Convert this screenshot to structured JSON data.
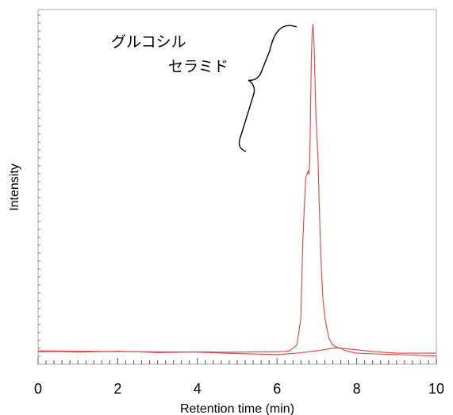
{
  "chart_data": {
    "type": "line",
    "xlabel": "Retention time (min)",
    "ylabel": "Intensity",
    "xlim": [
      0,
      10
    ],
    "ylim": [
      0,
      100
    ],
    "x_ticks": [
      0,
      2,
      4,
      6,
      8,
      10
    ],
    "grid": false,
    "line_color": "#e8413c",
    "series": [
      {
        "x": [
          0,
          0.5,
          1,
          2,
          3,
          4,
          4.5,
          5,
          5.5,
          6,
          6.3,
          6.5,
          6.6,
          6.62,
          6.65,
          6.7,
          6.72,
          6.75,
          6.78,
          6.8,
          6.82,
          6.84,
          6.86,
          6.88,
          6.9,
          6.92,
          6.94,
          6.96,
          6.98,
          7.0,
          7.03,
          7.06,
          7.1,
          7.15,
          7.2,
          7.3,
          7.4,
          7.5,
          7.6,
          7.7,
          7.8,
          8,
          8.5,
          9,
          9.5,
          10
        ],
        "y": [
          2,
          2.1,
          1.9,
          2.2,
          1.8,
          2.0,
          1.9,
          1.9,
          2.0,
          2.0,
          2.2,
          4,
          12,
          22,
          35,
          48,
          53,
          54,
          55,
          54,
          58,
          72,
          88,
          95,
          98,
          95,
          88,
          78,
          70,
          66,
          58,
          45,
          30,
          18,
          12,
          6,
          4,
          3.4,
          3.0,
          2.5,
          2.1,
          1.6,
          1.4,
          1.2,
          1.0,
          0.8
        ]
      },
      {
        "x": [
          0,
          1,
          2,
          3,
          4,
          5,
          6,
          6.5,
          7,
          7.5,
          8,
          8.5,
          9,
          10
        ],
        "y": [
          2.3,
          2.2,
          2.1,
          2.0,
          1.9,
          1.5,
          1.2,
          1.6,
          2.3,
          3.2,
          2.6,
          2.0,
          1.6,
          1.6
        ]
      }
    ],
    "annotations": [
      {
        "lines": [
          "グルコシル",
          "セラミド"
        ],
        "points_to": "peak at ~6.9 min"
      }
    ]
  }
}
